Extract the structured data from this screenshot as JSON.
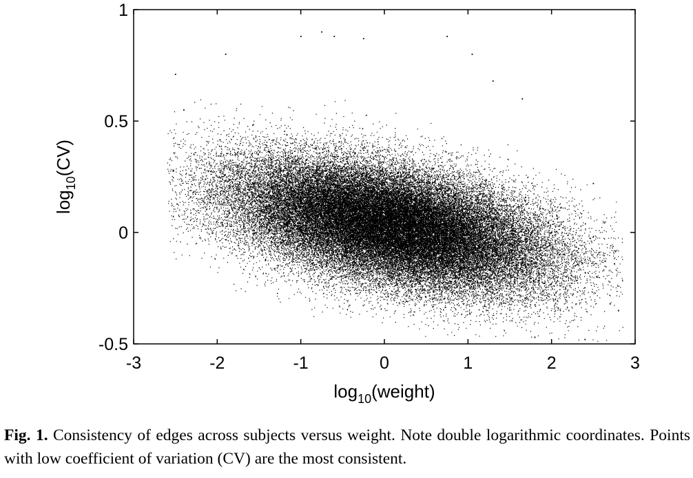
{
  "chart_data": {
    "type": "scatter",
    "title": "",
    "xlabel": {
      "base": "log",
      "subscript": "10",
      "rest": "(weight)"
    },
    "ylabel": {
      "base": "log",
      "subscript": "10",
      "rest": "(CV)"
    },
    "xlim": [
      -3,
      3
    ],
    "ylim": [
      -0.5,
      1
    ],
    "xticks": [
      -3,
      -2,
      -1,
      0,
      1,
      2,
      3
    ],
    "yticks": [
      -0.5,
      0,
      0.5,
      1
    ],
    "xtick_labels": [
      "-3",
      "-2",
      "-1",
      "0",
      "1",
      "2",
      "3"
    ],
    "ytick_labels": [
      "-0.5",
      "0",
      "0.5",
      "1"
    ],
    "grid": false,
    "legend": "none",
    "marker_color": "#000000",
    "point_count_estimate": 60000,
    "trend": {
      "slope": -0.07,
      "intercept": 0.04
    },
    "cloud": {
      "x_range": [
        -2.5,
        2.8
      ],
      "dense_core_x": [
        -1.2,
        1.8
      ],
      "y_spread_at_x": [
        {
          "x": -2.0,
          "y_min": 0.2,
          "y_max": 0.45
        },
        {
          "x": -1.0,
          "y_min": -0.1,
          "y_max": 0.55
        },
        {
          "x": 0.0,
          "y_min": -0.2,
          "y_max": 0.6
        },
        {
          "x": 1.0,
          "y_min": -0.3,
          "y_max": 0.45
        },
        {
          "x": 2.0,
          "y_min": -0.35,
          "y_max": 0.25
        },
        {
          "x": 2.5,
          "y_min": -0.45,
          "y_max": 0.1
        }
      ],
      "outliers": [
        {
          "x": -2.5,
          "y": 0.71
        },
        {
          "x": -2.4,
          "y": 0.55
        },
        {
          "x": -1.9,
          "y": 0.8
        },
        {
          "x": -1.0,
          "y": 0.88
        },
        {
          "x": -0.75,
          "y": 0.9
        },
        {
          "x": -0.6,
          "y": 0.88
        },
        {
          "x": -0.25,
          "y": 0.87
        },
        {
          "x": 0.75,
          "y": 0.88
        },
        {
          "x": 1.05,
          "y": 0.8
        },
        {
          "x": 1.3,
          "y": 0.68
        },
        {
          "x": 1.65,
          "y": 0.6
        },
        {
          "x": 2.5,
          "y": 0.22
        },
        {
          "x": 2.7,
          "y": -0.32
        },
        {
          "x": 2.8,
          "y": -0.35
        },
        {
          "x": 1.8,
          "y": -0.47
        },
        {
          "x": 2.4,
          "y": -0.48
        }
      ]
    }
  },
  "caption": {
    "label": "Fig. 1.",
    "text": " Consistency of edges across subjects versus weight. Note double logarithmic coordinates. Points with low coefficient of variation (CV) are the most consistent."
  }
}
